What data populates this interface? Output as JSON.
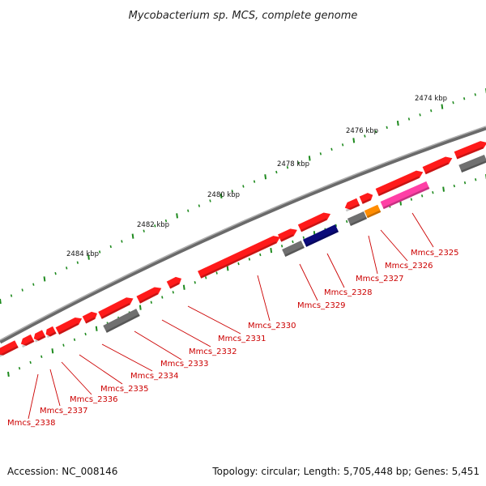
{
  "title": "Mycobacterium sp. MCS, complete genome",
  "footer": {
    "accession": "Accession: NC_008146",
    "topology": "Topology: circular; Length: 5,705,448 bp; Genes: 5,451"
  },
  "ticks": [
    {
      "label": "2474 kbp"
    },
    {
      "label": "2476 kbp"
    },
    {
      "label": "2478 kbp"
    },
    {
      "label": "2480 kbp"
    },
    {
      "label": "2482 kbp"
    },
    {
      "label": "2484 kbp"
    }
  ],
  "gene_labels": [
    "Mmcs_2325",
    "Mmcs_2326",
    "Mmcs_2327",
    "Mmcs_2328",
    "Mmcs_2329",
    "Mmcs_2330",
    "Mmcs_2331",
    "Mmcs_2332",
    "Mmcs_2333",
    "Mmcs_2334",
    "Mmcs_2335",
    "Mmcs_2336",
    "Mmcs_2337",
    "Mmcs_2338"
  ],
  "colors": {
    "cds": "#ff1a1a",
    "other_gene": "#707070",
    "trna": "#0a0a7a",
    "rrna": "#ff8c00",
    "misc": "#ff3fa6",
    "backbone": "#8a8a8a",
    "tick": "#1e8a1e",
    "label": "#cc0000"
  }
}
